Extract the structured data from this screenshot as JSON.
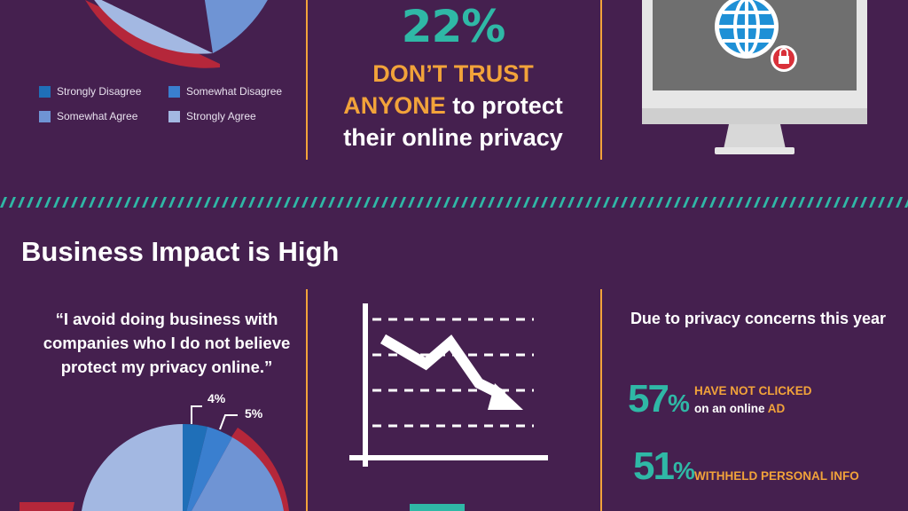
{
  "legend": {
    "items": [
      {
        "label": "Strongly Disagree",
        "color": "#1f6fb8"
      },
      {
        "label": "Somewhat Disagree",
        "color": "#3a7fcf"
      },
      {
        "label": "Somewhat Agree",
        "color": "#6f94d4"
      },
      {
        "label": "Strongly Agree",
        "color": "#a3b8e2"
      }
    ]
  },
  "trust": {
    "percent": "22%",
    "line1": "DON’T TRUST",
    "line2_highlight": "ANYONE",
    "line2_rest": " to protect",
    "line3": "their online privacy"
  },
  "section": {
    "title": "Business Impact is High"
  },
  "quote": {
    "text": "“I avoid doing business with companies who I do not believe protect my privacy online.”"
  },
  "pie": {
    "label_a": "4%",
    "label_b": "5%",
    "values": [
      4,
      5,
      14,
      77
    ]
  },
  "due": {
    "heading": "Due to privacy concerns this year"
  },
  "stats": [
    {
      "number": "57",
      "pct": "%",
      "line1": "HAVE NOT CLICKED",
      "line2_prefix": "on an online ",
      "line2_highlight": "AD"
    },
    {
      "number": "51",
      "pct": "%",
      "line1": "WITHHELD PERSONAL INFO"
    }
  ],
  "colors": {
    "background": "#45204f",
    "accent_orange": "#f2a33a",
    "accent_teal": "#2fb8a6",
    "accent_red": "#b5273a"
  },
  "icons": {
    "monitor": "monitor-icon",
    "globe": "globe-icon",
    "lock": "lock-icon",
    "chart": "declining-chart-icon"
  }
}
